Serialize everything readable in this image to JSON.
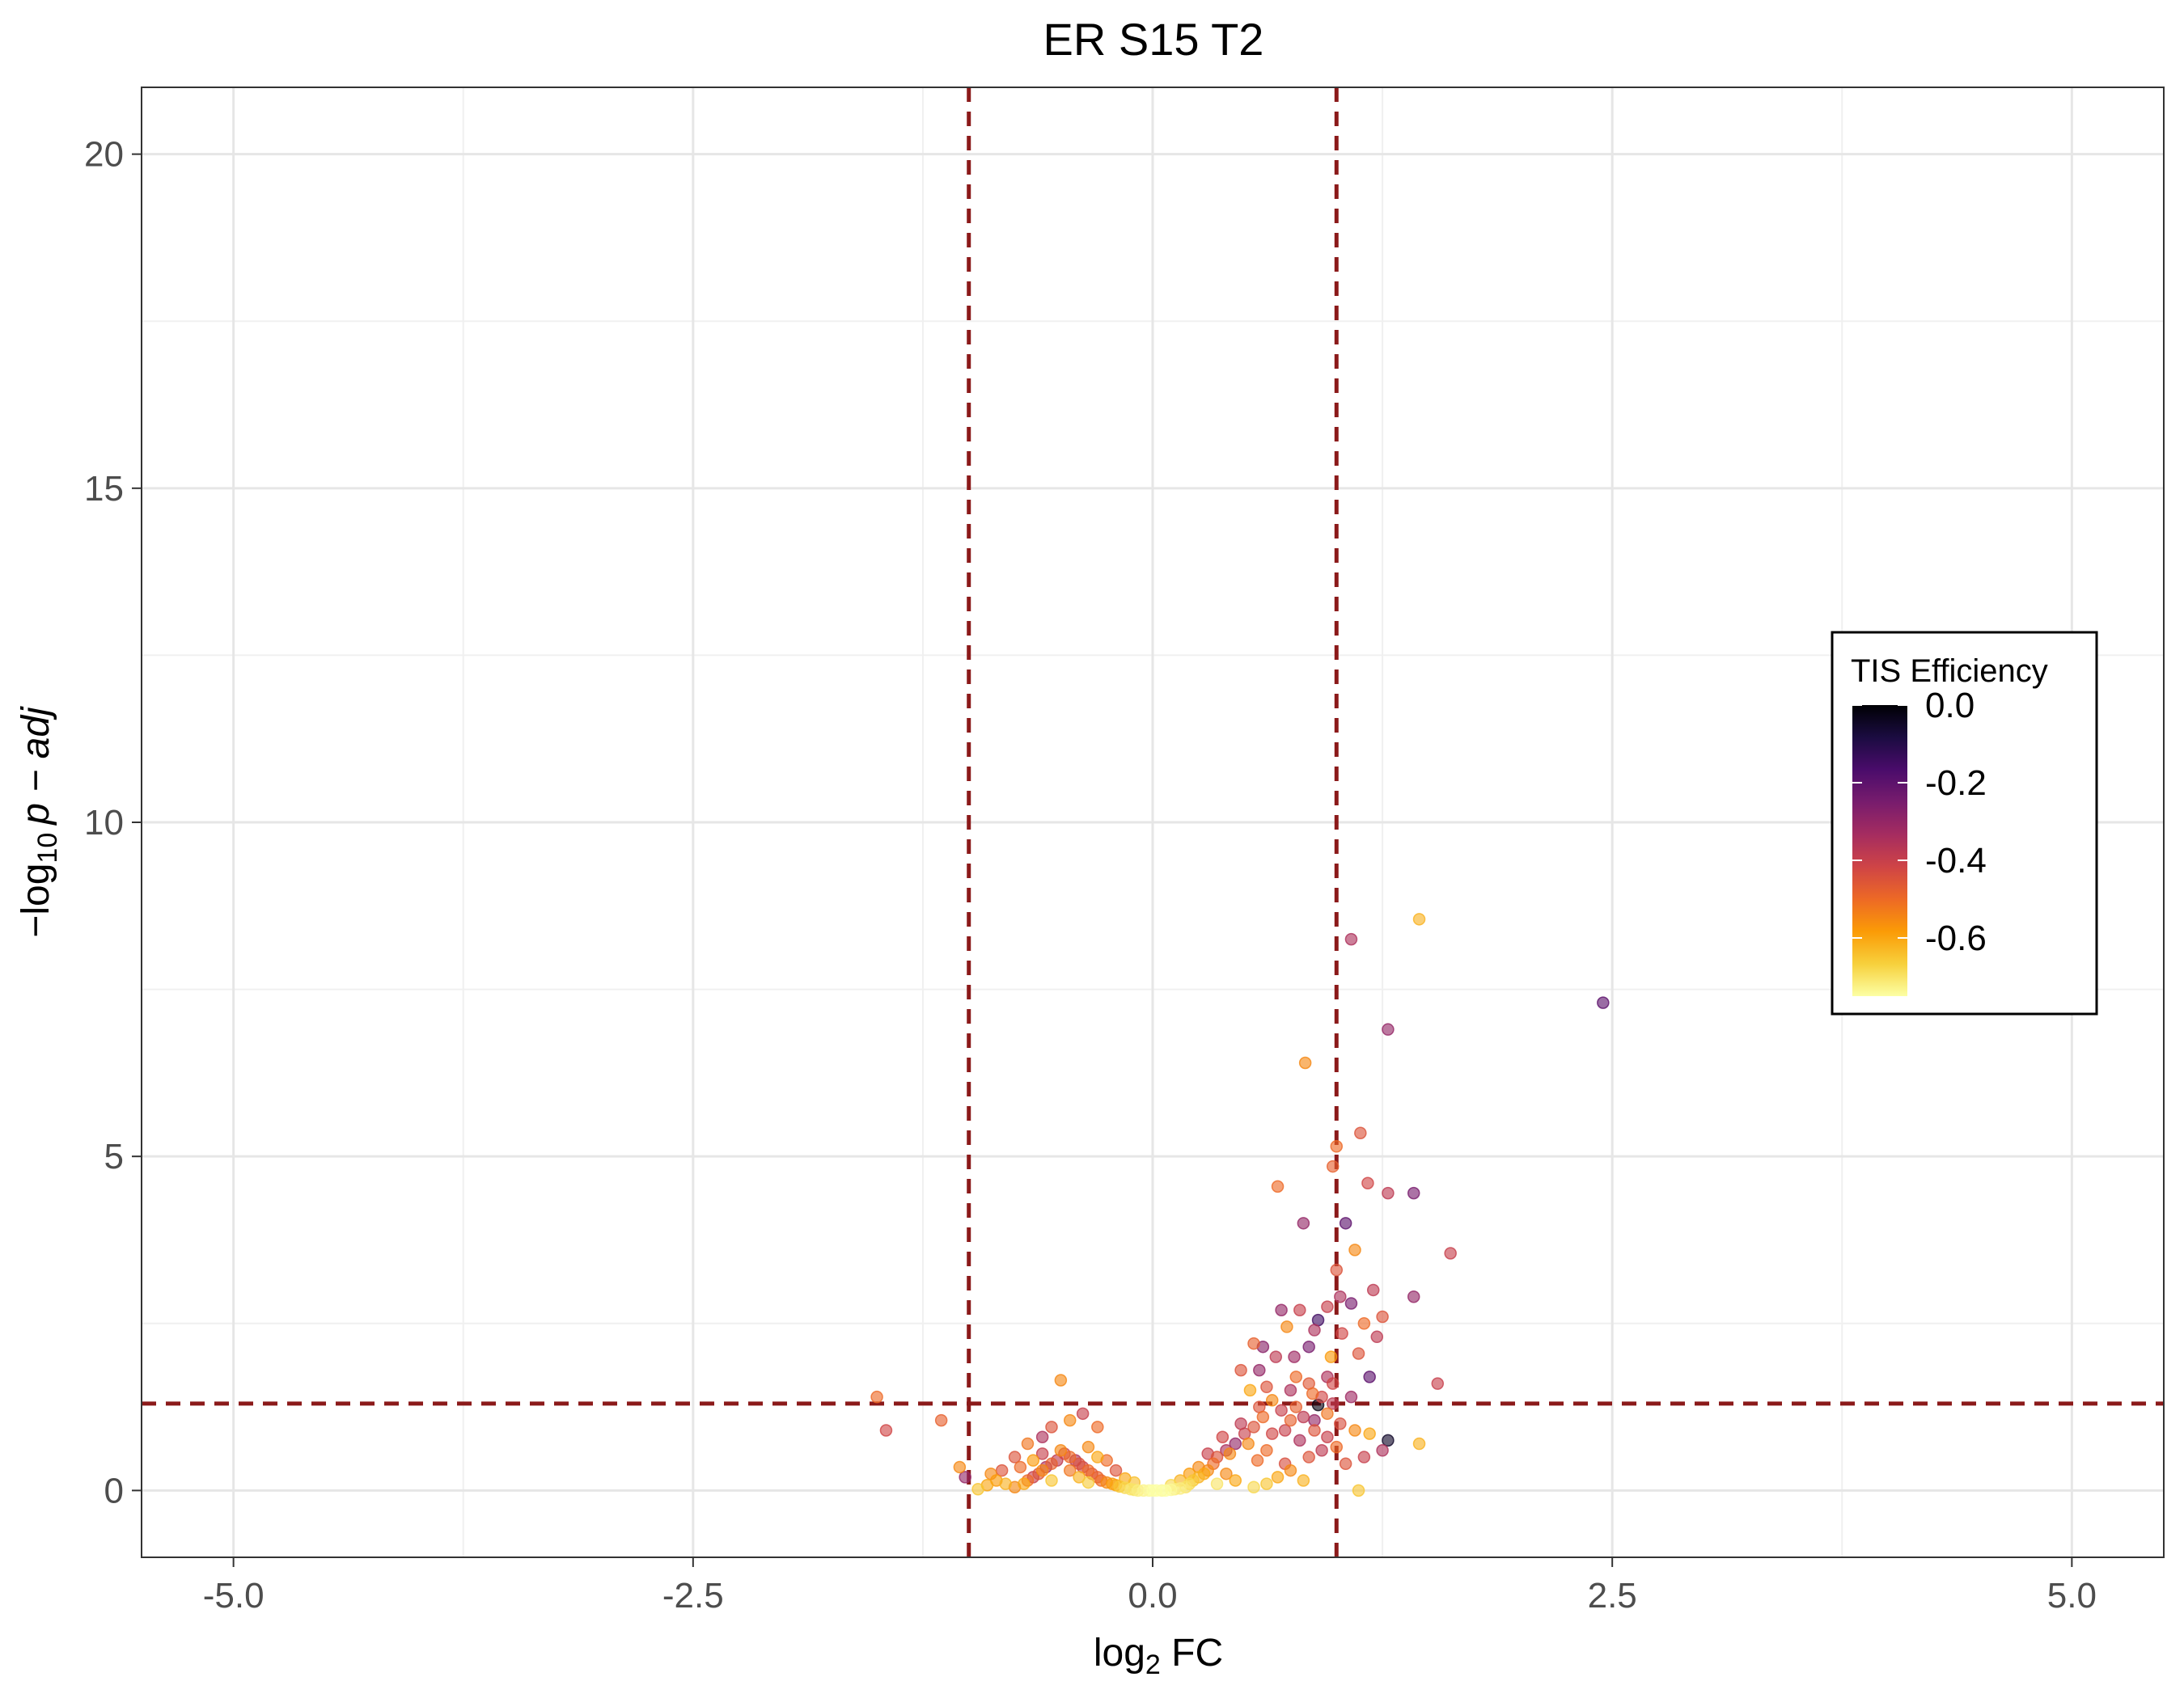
{
  "chart_data": {
    "type": "scatter",
    "title": "ER S15 T2",
    "xlabel": {
      "main": "log",
      "sub": "2",
      "rest": " FC"
    },
    "ylabel": {
      "prefix": "−log",
      "sub": "10",
      "rest": "p − adj"
    },
    "xlim": [
      -5.5,
      5.5
    ],
    "ylim": [
      -1,
      21
    ],
    "x_ticks": [
      -5.0,
      -2.5,
      0.0,
      2.5,
      5.0
    ],
    "x_tick_labels": [
      "-5.0",
      "-2.5",
      "0.0",
      "2.5",
      "5.0"
    ],
    "y_ticks": [
      0,
      5,
      10,
      15,
      20
    ],
    "y_tick_labels": [
      "0",
      "5",
      "10",
      "15",
      "20"
    ],
    "grid": true,
    "threshold_lines": {
      "x": [
        -1,
        1
      ],
      "y": 1.3,
      "color": "#8b1a1a"
    },
    "legend": {
      "title": "TIS Efficiency",
      "placement": "right",
      "ticks": [
        0.0,
        -0.2,
        -0.4,
        -0.6
      ],
      "tick_labels": [
        "0.0",
        "-0.2",
        "-0.4",
        "-0.6"
      ],
      "range": [
        -0.75,
        0.0
      ],
      "colormap": [
        "#fcffa4",
        "#f7d03c",
        "#fb9b06",
        "#ed6925",
        "#cf4446",
        "#a52c60",
        "#781c6d",
        "#4a0c6b",
        "#1b0c41",
        "#000004"
      ]
    },
    "points": [
      [
        2.45,
        7.3,
        -0.2
      ],
      [
        1.45,
        8.55,
        -0.62
      ],
      [
        1.08,
        8.25,
        -0.35
      ],
      [
        1.28,
        6.9,
        -0.3
      ],
      [
        0.83,
        6.4,
        -0.55
      ],
      [
        1.62,
        3.55,
        -0.4
      ],
      [
        1.13,
        5.35,
        -0.45
      ],
      [
        1.0,
        5.15,
        -0.5
      ],
      [
        0.98,
        4.85,
        -0.48
      ],
      [
        1.17,
        4.6,
        -0.42
      ],
      [
        1.28,
        4.45,
        -0.38
      ],
      [
        1.42,
        4.45,
        -0.25
      ],
      [
        0.68,
        4.55,
        -0.5
      ],
      [
        0.82,
        4.0,
        -0.3
      ],
      [
        1.05,
        4.0,
        -0.2
      ],
      [
        1.1,
        3.6,
        -0.55
      ],
      [
        1.0,
        3.3,
        -0.45
      ],
      [
        1.2,
        3.0,
        -0.38
      ],
      [
        1.42,
        2.9,
        -0.3
      ],
      [
        1.02,
        2.9,
        -0.35
      ],
      [
        0.95,
        2.75,
        -0.4
      ],
      [
        1.08,
        2.8,
        -0.25
      ],
      [
        0.7,
        2.7,
        -0.3
      ],
      [
        0.8,
        2.7,
        -0.4
      ],
      [
        1.25,
        2.6,
        -0.45
      ],
      [
        0.9,
        2.55,
        -0.15
      ],
      [
        1.15,
        2.5,
        -0.5
      ],
      [
        0.73,
        2.45,
        -0.55
      ],
      [
        0.88,
        2.4,
        -0.35
      ],
      [
        1.03,
        2.35,
        -0.42
      ],
      [
        1.22,
        2.3,
        -0.38
      ],
      [
        0.6,
        2.15,
        -0.28
      ],
      [
        0.55,
        2.2,
        -0.48
      ],
      [
        0.77,
        2.0,
        -0.32
      ],
      [
        0.67,
        2.0,
        -0.38
      ],
      [
        0.85,
        2.15,
        -0.25
      ],
      [
        0.97,
        2.0,
        -0.58
      ],
      [
        1.12,
        2.05,
        -0.45
      ],
      [
        0.48,
        1.8,
        -0.45
      ],
      [
        0.58,
        1.8,
        -0.3
      ],
      [
        1.18,
        1.7,
        -0.2
      ],
      [
        0.95,
        1.7,
        -0.35
      ],
      [
        1.55,
        1.6,
        -0.4
      ],
      [
        0.53,
        1.5,
        -0.6
      ],
      [
        0.62,
        1.55,
        -0.45
      ],
      [
        0.75,
        1.5,
        -0.35
      ],
      [
        0.87,
        1.45,
        -0.5
      ],
      [
        0.98,
        1.6,
        -0.42
      ],
      [
        1.08,
        1.4,
        -0.32
      ],
      [
        0.9,
        1.28,
        -0.02
      ],
      [
        0.65,
        1.35,
        -0.55
      ],
      [
        0.7,
        1.2,
        -0.4
      ],
      [
        0.78,
        1.25,
        -0.48
      ],
      [
        0.82,
        1.1,
        -0.38
      ],
      [
        0.88,
        1.05,
        -0.3
      ],
      [
        0.95,
        1.15,
        -0.52
      ],
      [
        1.02,
        1.0,
        -0.44
      ],
      [
        1.1,
        0.9,
        -0.55
      ],
      [
        1.18,
        0.85,
        -0.6
      ],
      [
        1.28,
        0.75,
        -0.05
      ],
      [
        1.45,
        0.7,
        -0.62
      ],
      [
        1.25,
        0.6,
        -0.35
      ],
      [
        1.15,
        0.5,
        -0.4
      ],
      [
        1.05,
        0.4,
        -0.45
      ],
      [
        1.12,
        0.0,
        -0.65
      ],
      [
        0.6,
        1.1,
        -0.5
      ],
      [
        0.55,
        0.95,
        -0.45
      ],
      [
        0.5,
        0.85,
        -0.4
      ],
      [
        0.45,
        0.7,
        -0.3
      ],
      [
        0.42,
        0.55,
        -0.55
      ],
      [
        0.4,
        0.6,
        -0.35
      ],
      [
        0.35,
        0.5,
        -0.45
      ],
      [
        0.33,
        0.4,
        -0.5
      ],
      [
        0.3,
        0.3,
        -0.55
      ],
      [
        0.28,
        0.25,
        -0.6
      ],
      [
        0.25,
        0.2,
        -0.62
      ],
      [
        0.22,
        0.15,
        -0.65
      ],
      [
        0.2,
        0.1,
        -0.68
      ],
      [
        0.18,
        0.05,
        -0.7
      ],
      [
        0.15,
        0.03,
        -0.72
      ],
      [
        0.12,
        0.02,
        -0.72
      ],
      [
        0.1,
        0.01,
        -0.74
      ],
      [
        0.07,
        0.0,
        -0.75
      ],
      [
        0.05,
        0.0,
        -0.74
      ],
      [
        0.02,
        0.0,
        -0.75
      ],
      [
        0.0,
        0.0,
        -0.75
      ],
      [
        -0.02,
        0.0,
        -0.74
      ],
      [
        -0.05,
        0.0,
        -0.73
      ],
      [
        -0.08,
        0.0,
        -0.72
      ],
      [
        -0.1,
        0.01,
        -0.7
      ],
      [
        -0.12,
        0.02,
        -0.7
      ],
      [
        -0.15,
        0.04,
        -0.68
      ],
      [
        -0.18,
        0.06,
        -0.65
      ],
      [
        -0.2,
        0.08,
        -0.6
      ],
      [
        -0.22,
        0.1,
        -0.58
      ],
      [
        -0.25,
        0.12,
        -0.55
      ],
      [
        -0.28,
        0.15,
        -0.5
      ],
      [
        -0.3,
        0.2,
        -0.48
      ],
      [
        -0.33,
        0.25,
        -0.45
      ],
      [
        -0.35,
        0.3,
        -0.5
      ],
      [
        -0.38,
        0.35,
        -0.4
      ],
      [
        -0.4,
        0.4,
        -0.45
      ],
      [
        -0.42,
        0.45,
        -0.35
      ],
      [
        -0.45,
        0.5,
        -0.5
      ],
      [
        -0.48,
        0.55,
        -0.42
      ],
      [
        -0.5,
        0.6,
        -0.55
      ],
      [
        -0.52,
        0.45,
        -0.38
      ],
      [
        -0.55,
        0.4,
        -0.48
      ],
      [
        -0.58,
        0.35,
        -0.35
      ],
      [
        -0.6,
        0.3,
        -0.55
      ],
      [
        -0.62,
        0.25,
        -0.45
      ],
      [
        -0.65,
        0.2,
        -0.4
      ],
      [
        -0.68,
        0.15,
        -0.5
      ],
      [
        -0.7,
        0.1,
        -0.6
      ],
      [
        -0.75,
        0.05,
        -0.55
      ],
      [
        -0.8,
        0.1,
        -0.62
      ],
      [
        -0.85,
        0.15,
        -0.58
      ],
      [
        -0.9,
        0.08,
        -0.6
      ],
      [
        -0.95,
        0.02,
        -0.65
      ],
      [
        -0.5,
        1.65,
        -0.55
      ],
      [
        -0.38,
        1.15,
        -0.4
      ],
      [
        -0.45,
        1.05,
        -0.55
      ],
      [
        -0.55,
        0.95,
        -0.45
      ],
      [
        -0.3,
        0.95,
        -0.5
      ],
      [
        -0.6,
        0.8,
        -0.35
      ],
      [
        -0.68,
        0.7,
        -0.52
      ],
      [
        -0.75,
        0.5,
        -0.45
      ],
      [
        -1.45,
        0.9,
        -0.42
      ],
      [
        -1.5,
        1.4,
        -0.5
      ],
      [
        -1.15,
        1.05,
        -0.48
      ],
      [
        -1.05,
        0.35,
        -0.55
      ],
      [
        -1.02,
        0.2,
        -0.3
      ],
      [
        -0.3,
        0.5,
        -0.6
      ],
      [
        -0.35,
        0.65,
        -0.55
      ],
      [
        -0.25,
        0.45,
        -0.5
      ],
      [
        -0.2,
        0.3,
        -0.45
      ],
      [
        0.3,
        0.55,
        -0.4
      ],
      [
        0.38,
        0.8,
        -0.42
      ],
      [
        0.48,
        1.0,
        -0.38
      ],
      [
        0.58,
        1.25,
        -0.45
      ],
      [
        0.52,
        0.7,
        -0.55
      ],
      [
        0.62,
        0.6,
        -0.5
      ],
      [
        0.72,
        0.9,
        -0.4
      ],
      [
        0.8,
        0.75,
        -0.35
      ],
      [
        0.85,
        0.5,
        -0.45
      ],
      [
        0.92,
        0.6,
        -0.38
      ],
      [
        0.75,
        0.3,
        -0.55
      ],
      [
        0.68,
        0.2,
        -0.6
      ],
      [
        0.82,
        0.15,
        -0.62
      ],
      [
        0.62,
        0.1,
        -0.65
      ],
      [
        0.55,
        0.05,
        -0.68
      ],
      [
        0.45,
        0.15,
        -0.6
      ],
      [
        0.4,
        0.25,
        -0.55
      ],
      [
        0.35,
        0.1,
        -0.7
      ],
      [
        0.88,
        0.9,
        -0.45
      ],
      [
        0.95,
        0.8,
        -0.4
      ],
      [
        1.0,
        0.65,
        -0.5
      ],
      [
        0.75,
        1.05,
        -0.48
      ],
      [
        0.65,
        0.85,
        -0.42
      ],
      [
        0.57,
        0.45,
        -0.5
      ],
      [
        0.72,
        0.4,
        -0.44
      ],
      [
        0.98,
        1.3,
        -0.38
      ],
      [
        0.92,
        1.4,
        -0.42
      ],
      [
        0.85,
        1.6,
        -0.46
      ],
      [
        0.78,
        1.7,
        -0.5
      ],
      [
        -0.4,
        0.2,
        -0.62
      ],
      [
        -0.6,
        0.55,
        -0.4
      ],
      [
        -0.72,
        0.35,
        -0.5
      ],
      [
        -0.82,
        0.3,
        -0.45
      ],
      [
        -0.88,
        0.25,
        -0.55
      ],
      [
        -0.65,
        0.45,
        -0.58
      ],
      [
        -0.45,
        0.3,
        -0.52
      ],
      [
        -0.55,
        0.15,
        -0.65
      ],
      [
        -0.35,
        0.12,
        -0.66
      ],
      [
        0.25,
        0.35,
        -0.55
      ],
      [
        0.2,
        0.25,
        -0.58
      ],
      [
        0.15,
        0.15,
        -0.62
      ],
      [
        -0.15,
        0.18,
        -0.6
      ],
      [
        -0.1,
        0.12,
        -0.64
      ],
      [
        0.1,
        0.08,
        -0.68
      ]
    ]
  }
}
